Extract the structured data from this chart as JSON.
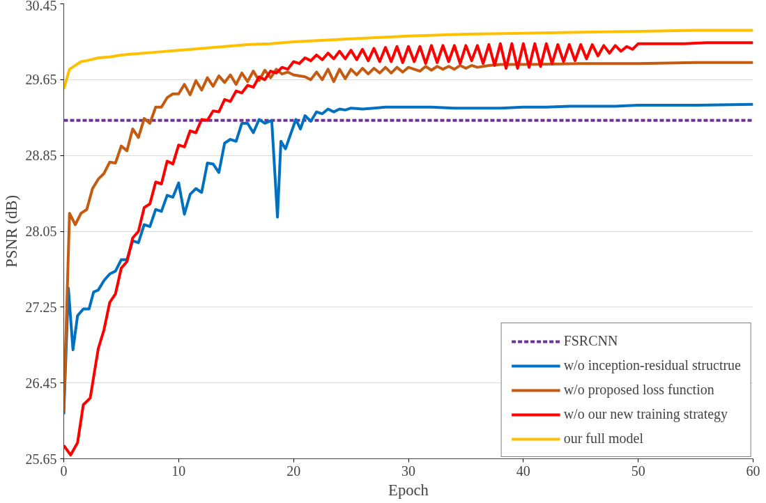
{
  "chart_data": {
    "type": "line",
    "xlabel": "Epoch",
    "ylabel": "PSNR (dB)",
    "xlim": [
      0,
      60
    ],
    "xticks": [
      0,
      10,
      20,
      30,
      40,
      50,
      60
    ],
    "ylim": [
      25.65,
      30.45
    ],
    "yticks": [
      25.65,
      26.45,
      27.25,
      28.05,
      28.85,
      29.65,
      30.45
    ],
    "grid": "y",
    "legend": "bottom right",
    "series": [
      {
        "name": "FSRCNN",
        "color": "#7030a0",
        "line_style": "dashed",
        "x": [
          0,
          60
        ],
        "values": [
          29.22,
          29.22
        ]
      },
      {
        "name": "w/o inception-residual structrue",
        "color": "#0070c0",
        "x": [
          0,
          0.4,
          0.8,
          1.2,
          1.7,
          2.2,
          2.6,
          3,
          3.5,
          4,
          4.5,
          5,
          5.5,
          6,
          6.5,
          7,
          7.5,
          8,
          8.5,
          9,
          9.5,
          10,
          10.5,
          11,
          11.5,
          12,
          12.5,
          13,
          13.5,
          14,
          14.5,
          15,
          15.5,
          16,
          16.5,
          17,
          17.5,
          18.1,
          18.6,
          18.9,
          19.3,
          19.7,
          20.2,
          20.6,
          21,
          21.5,
          22,
          22.5,
          23,
          23.5,
          24,
          24.5,
          25,
          26,
          27,
          28,
          30,
          32,
          34,
          36,
          38,
          40,
          42,
          44,
          46,
          48,
          50,
          55,
          60
        ],
        "values": [
          26.12,
          27.45,
          26.8,
          27.16,
          27.23,
          27.23,
          27.41,
          27.43,
          27.53,
          27.6,
          27.63,
          27.75,
          27.75,
          27.95,
          27.93,
          28.12,
          28.1,
          28.28,
          28.26,
          28.43,
          28.41,
          28.56,
          28.23,
          28.44,
          28.5,
          28.46,
          28.77,
          28.76,
          28.67,
          28.98,
          29.02,
          29.0,
          29.19,
          29.19,
          29.09,
          29.23,
          29.19,
          29.22,
          28.2,
          29.0,
          28.92,
          29.06,
          29.23,
          29.13,
          29.27,
          29.21,
          29.31,
          29.29,
          29.34,
          29.31,
          29.34,
          29.33,
          29.35,
          29.34,
          29.35,
          29.36,
          29.36,
          29.36,
          29.35,
          29.35,
          29.35,
          29.36,
          29.36,
          29.37,
          29.37,
          29.37,
          29.38,
          29.38,
          29.39
        ]
      },
      {
        "name": "w/o proposed loss function",
        "color": "#c55a11",
        "x": [
          0,
          0.5,
          1,
          1.5,
          2,
          2.5,
          3,
          3.5,
          4,
          4.5,
          5,
          5.5,
          6,
          6.5,
          7,
          7.5,
          8,
          8.5,
          9,
          9.5,
          10,
          10.5,
          11,
          11.5,
          12,
          12.5,
          13,
          13.5,
          14,
          14.5,
          15,
          15.5,
          16,
          16.5,
          17,
          17.5,
          18,
          18.5,
          19,
          19.5,
          20,
          21,
          21.5,
          22,
          22.5,
          23,
          23.5,
          24,
          24.5,
          25,
          25.5,
          26,
          26.5,
          27,
          27.5,
          28,
          28.5,
          29,
          29.5,
          30,
          31,
          31.5,
          32,
          32.5,
          33,
          33.5,
          34,
          34.5,
          35,
          35.5,
          36,
          37,
          38,
          40,
          45,
          50,
          55,
          60
        ],
        "values": [
          26.15,
          28.24,
          28.12,
          28.24,
          28.28,
          28.5,
          28.6,
          28.66,
          28.78,
          28.77,
          28.95,
          28.9,
          29.13,
          29.04,
          29.24,
          29.19,
          29.36,
          29.36,
          29.46,
          29.5,
          29.5,
          29.6,
          29.49,
          29.64,
          29.54,
          29.67,
          29.58,
          29.69,
          29.62,
          29.7,
          29.6,
          29.72,
          29.63,
          29.74,
          29.64,
          29.75,
          29.67,
          29.76,
          29.71,
          29.73,
          29.7,
          29.68,
          29.65,
          29.73,
          29.65,
          29.76,
          29.63,
          29.76,
          29.66,
          29.76,
          29.7,
          29.77,
          29.71,
          29.77,
          29.72,
          29.78,
          29.72,
          29.78,
          29.73,
          29.78,
          29.74,
          29.79,
          29.75,
          29.79,
          29.76,
          29.79,
          29.76,
          29.8,
          29.77,
          29.8,
          29.78,
          29.8,
          29.81,
          29.81,
          29.82,
          29.82,
          29.83,
          29.83
        ]
      },
      {
        "name": "w/o our new training strategy",
        "color": "#ff0000",
        "x": [
          0,
          0.6,
          1.2,
          1.7,
          2.3,
          3,
          3.5,
          4,
          4.5,
          5,
          5.5,
          6,
          6.5,
          7,
          7.5,
          8,
          8.5,
          9,
          9.5,
          10,
          10.5,
          11,
          11.5,
          12,
          12.5,
          13,
          13.5,
          14,
          14.5,
          15,
          15.5,
          16,
          16.5,
          17,
          17.5,
          18,
          18.5,
          19,
          19.5,
          20,
          20.5,
          21,
          21.5,
          22,
          22.5,
          23,
          23.5,
          24,
          24.5,
          25,
          25.5,
          26,
          26.5,
          27,
          27.5,
          28,
          28.5,
          29,
          29.5,
          30,
          30.5,
          31,
          31.5,
          32,
          32.5,
          33,
          33.5,
          34,
          34.5,
          35,
          35.5,
          36,
          36.5,
          37,
          37.5,
          38,
          38.5,
          39,
          39.5,
          40,
          40.5,
          41,
          41.5,
          42,
          42.5,
          43,
          43.5,
          44,
          44.5,
          45,
          45.5,
          46,
          46.5,
          47,
          47.5,
          48,
          48.5,
          49,
          49.5,
          50,
          52,
          54,
          56,
          58,
          60
        ],
        "values": [
          25.79,
          25.69,
          25.82,
          26.22,
          26.29,
          26.81,
          27.01,
          27.3,
          27.39,
          27.66,
          27.73,
          27.98,
          28.05,
          28.3,
          28.34,
          28.57,
          28.55,
          28.79,
          28.76,
          28.96,
          28.94,
          29.11,
          29.09,
          29.23,
          29.22,
          29.32,
          29.31,
          29.44,
          29.42,
          29.53,
          29.51,
          29.59,
          29.57,
          29.68,
          29.65,
          29.74,
          29.72,
          29.78,
          29.76,
          29.84,
          29.82,
          29.88,
          29.85,
          29.91,
          29.86,
          29.93,
          29.87,
          29.95,
          29.87,
          29.96,
          29.86,
          29.97,
          29.85,
          29.98,
          29.84,
          29.99,
          29.84,
          30.0,
          29.83,
          30.0,
          29.84,
          30.0,
          29.82,
          30.01,
          29.83,
          30.01,
          29.84,
          30.01,
          29.82,
          30.01,
          29.85,
          30.01,
          29.82,
          30.02,
          29.8,
          30.03,
          29.77,
          30.03,
          29.77,
          30.03,
          29.78,
          30.03,
          29.79,
          30.03,
          29.82,
          30.02,
          29.84,
          30.02,
          29.85,
          30.02,
          29.87,
          30.02,
          29.9,
          30.01,
          29.93,
          30.01,
          29.95,
          30.0,
          29.97,
          30.03,
          30.03,
          30.03,
          30.04,
          30.04,
          30.04
        ]
      },
      {
        "name": "our full model",
        "color": "#ffc000",
        "x": [
          0,
          0.5,
          1,
          1.5,
          2,
          3,
          4,
          5,
          6,
          7,
          8,
          10,
          12,
          14,
          16,
          18,
          20,
          25,
          30,
          35,
          40,
          45,
          50,
          55,
          60
        ],
        "values": [
          29.55,
          29.76,
          29.8,
          29.84,
          29.85,
          29.88,
          29.89,
          29.91,
          29.92,
          29.93,
          29.94,
          29.96,
          29.98,
          30.0,
          30.02,
          30.03,
          30.05,
          30.08,
          30.11,
          30.13,
          30.14,
          30.15,
          30.16,
          30.17,
          30.17
        ]
      }
    ]
  }
}
